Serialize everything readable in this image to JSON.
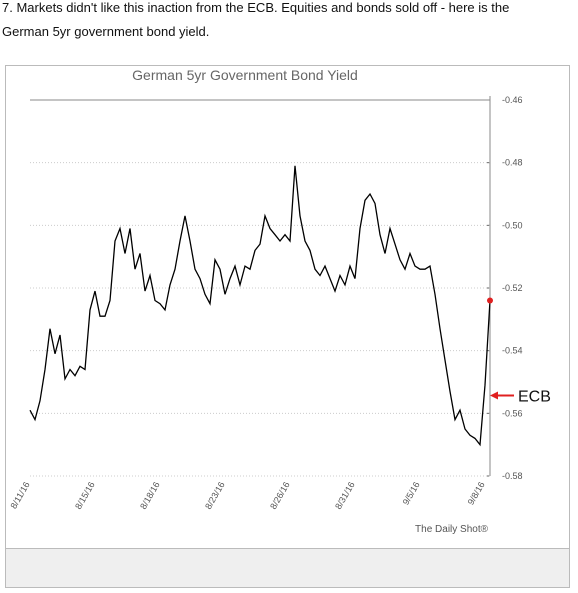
{
  "text_lines": [
    "7. Markets didn't like this inaction from the ECB. Equities and bonds sold off - here is the",
    "German 5yr government bond yield."
  ],
  "chart_data": {
    "type": "line",
    "title": "German 5yr Government Bond Yield",
    "source": "The Daily Shot®",
    "categories": [
      "8/11/16",
      null,
      null,
      null,
      null,
      null,
      null,
      null,
      null,
      null,
      null,
      null,
      null,
      "8/15/16",
      null,
      null,
      null,
      null,
      null,
      null,
      null,
      null,
      null,
      null,
      null,
      null,
      "8/18/16",
      null,
      null,
      null,
      null,
      null,
      null,
      null,
      null,
      null,
      null,
      null,
      null,
      "8/23/16",
      null,
      null,
      null,
      null,
      null,
      null,
      null,
      null,
      null,
      null,
      null,
      null,
      "8/26/16",
      null,
      null,
      null,
      null,
      null,
      null,
      null,
      null,
      null,
      null,
      null,
      null,
      "8/31/16",
      null,
      null,
      null,
      null,
      null,
      null,
      null,
      null,
      null,
      null,
      null,
      null,
      "9/5/16",
      null,
      null,
      null,
      null,
      null,
      null,
      null,
      null,
      null,
      null,
      null,
      null,
      "9/8/16",
      null
    ],
    "series": [
      {
        "name": "German 5yr Government Bond Yield",
        "color": "#000000",
        "values": [
          -0.559,
          -0.562,
          -0.556,
          -0.546,
          -0.533,
          -0.541,
          -0.535,
          -0.549,
          -0.546,
          -0.548,
          -0.545,
          -0.546,
          -0.527,
          -0.521,
          -0.529,
          -0.529,
          -0.524,
          -0.505,
          -0.501,
          -0.509,
          -0.501,
          -0.514,
          -0.509,
          -0.521,
          -0.516,
          -0.524,
          -0.525,
          -0.527,
          -0.519,
          -0.514,
          -0.505,
          -0.497,
          -0.505,
          -0.514,
          -0.517,
          -0.522,
          -0.525,
          -0.511,
          -0.514,
          -0.522,
          -0.517,
          -0.513,
          -0.519,
          -0.513,
          -0.514,
          -0.508,
          -0.506,
          -0.497,
          -0.501,
          -0.503,
          -0.505,
          -0.503,
          -0.505,
          -0.481,
          -0.497,
          -0.505,
          -0.508,
          -0.514,
          -0.516,
          -0.513,
          -0.517,
          -0.521,
          -0.516,
          -0.519,
          -0.513,
          -0.517,
          -0.501,
          -0.492,
          -0.49,
          -0.493,
          -0.503,
          -0.509,
          -0.501,
          -0.506,
          -0.511,
          -0.514,
          -0.509,
          -0.513,
          -0.514,
          -0.514,
          -0.513,
          -0.522,
          -0.533,
          -0.543,
          -0.553,
          -0.562,
          -0.559,
          -0.565,
          -0.567,
          -0.568,
          -0.57,
          -0.551,
          -0.524
        ]
      }
    ],
    "end_marker_color": "#e02020",
    "annotation": "ECB",
    "ylim": [
      -0.58,
      -0.46
    ],
    "yticks": [
      -0.46,
      -0.48,
      {
        "value": -0.5,
        "label": "-0.50"
      },
      -0.52,
      -0.54,
      -0.56,
      -0.58
    ],
    "grid": true
  }
}
